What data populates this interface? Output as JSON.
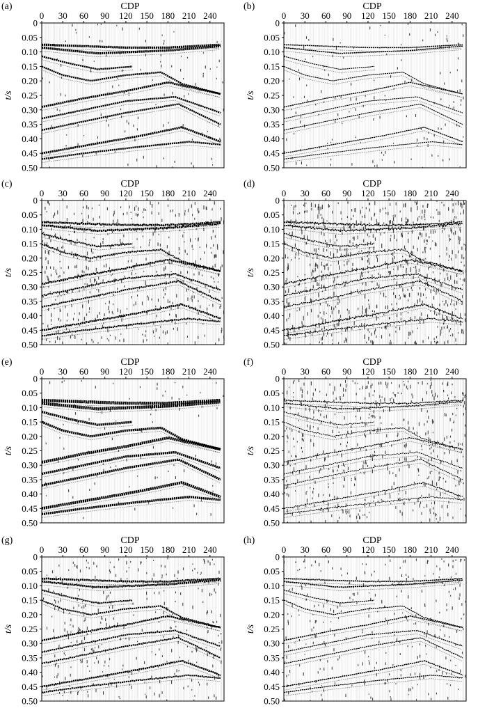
{
  "figure": {
    "x_axis_label": "CDP",
    "y_axis_label": "t/s",
    "x_ticks": [
      "0",
      "30",
      "60",
      "90",
      "120",
      "150",
      "180",
      "210",
      "240"
    ],
    "y_ticks": [
      "0",
      "0.05",
      "0.10",
      "0.15",
      "0.20",
      "0.25",
      "0.30",
      "0.35",
      "0.40",
      "0.45",
      "0.50"
    ],
    "panels": [
      {
        "label": "(a)",
        "style": "clean"
      },
      {
        "label": "(b)",
        "style": "clean-thin"
      },
      {
        "label": "(c)",
        "style": "noisy"
      },
      {
        "label": "(d)",
        "style": "very-noisy"
      },
      {
        "label": "(e)",
        "style": "clean-bold"
      },
      {
        "label": "(f)",
        "style": "noisy-thin"
      },
      {
        "label": "(g)",
        "style": "slightly-noisy"
      },
      {
        "label": "(h)",
        "style": "slightly-noisy-thin"
      }
    ]
  },
  "chart_data": {
    "type": "heatmap",
    "xlabel": "CDP",
    "ylabel": "t/s",
    "xlim": [
      0,
      260
    ],
    "ylim": [
      0.5,
      0
    ],
    "reflectors": [
      {
        "x": [
          0,
          60,
          120,
          180,
          255
        ],
        "t": [
          0.075,
          0.08,
          0.085,
          0.085,
          0.075
        ]
      },
      {
        "x": [
          0,
          40,
          80,
          130,
          180,
          255
        ],
        "t": [
          0.085,
          0.095,
          0.105,
          0.1,
          0.095,
          0.08
        ]
      },
      {
        "x": [
          0,
          40,
          80,
          130
        ],
        "t": [
          0.115,
          0.14,
          0.16,
          0.15
        ]
      },
      {
        "x": [
          0,
          30,
          70,
          120,
          170,
          200,
          255
        ],
        "t": [
          0.15,
          0.18,
          0.2,
          0.18,
          0.17,
          0.21,
          0.245
        ]
      },
      {
        "x": [
          0,
          60,
          120,
          180,
          255
        ],
        "t": [
          0.29,
          0.26,
          0.235,
          0.205,
          0.245
        ]
      },
      {
        "x": [
          0,
          60,
          120,
          190,
          255
        ],
        "t": [
          0.33,
          0.3,
          0.27,
          0.255,
          0.31
        ]
      },
      {
        "x": [
          0,
          60,
          120,
          195,
          255
        ],
        "t": [
          0.37,
          0.34,
          0.31,
          0.28,
          0.35
        ]
      },
      {
        "x": [
          0,
          70,
          140,
          200,
          255
        ],
        "t": [
          0.45,
          0.42,
          0.39,
          0.36,
          0.41
        ]
      },
      {
        "x": [
          0,
          60,
          130,
          210,
          255
        ],
        "t": [
          0.47,
          0.45,
          0.43,
          0.41,
          0.42
        ]
      }
    ]
  }
}
